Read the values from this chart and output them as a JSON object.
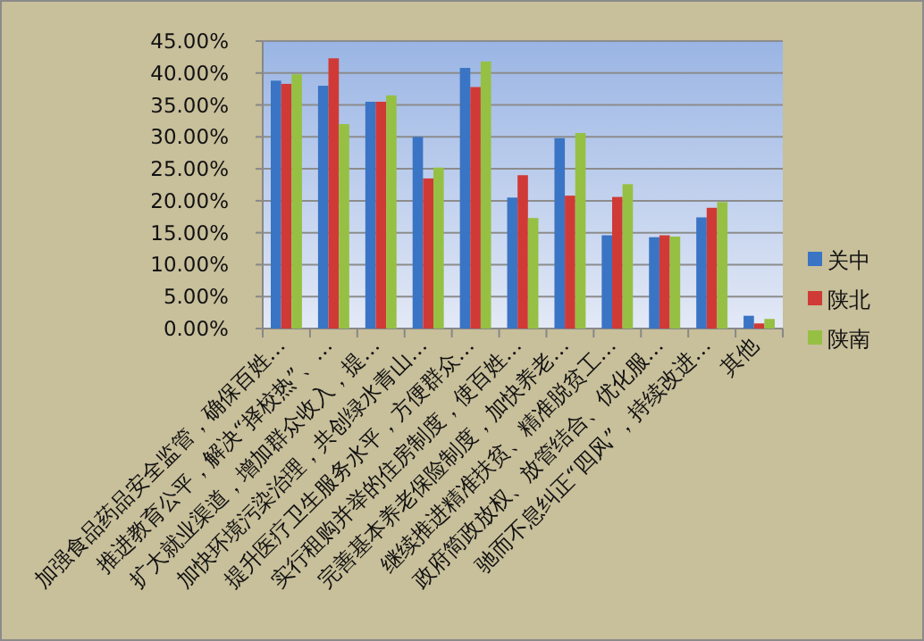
{
  "chart_data": {
    "type": "bar",
    "categories": [
      "加强食品药品安全监管，确保百姓…",
      "推进教育公平，解决“择校热”、…",
      "扩大就业渠道，增加群众收入，提…",
      "加快环境污染治理，共创绿水青山…",
      "提升医疗卫生服务水平，方便群众…",
      "实行租购并举的住房制度，使百姓…",
      "完善基本养老保险制度，加快养老…",
      "继续推进精准扶贫、精准脱贫工…",
      "政府简政放权、放管结合、优化服…",
      "驰而不息纠正“四风”，持续改进…",
      "其他"
    ],
    "series": [
      {
        "name": "关中",
        "color": "#3a74c4",
        "values": [
          38.8,
          38.0,
          35.5,
          30.0,
          40.8,
          20.5,
          29.8,
          14.6,
          14.3,
          17.4,
          2.0
        ]
      },
      {
        "name": "陕北",
        "color": "#d03a36",
        "values": [
          38.3,
          42.3,
          35.5,
          23.5,
          37.8,
          24.0,
          20.8,
          20.6,
          14.6,
          18.9,
          0.8
        ]
      },
      {
        "name": "陕南",
        "color": "#96c043",
        "values": [
          39.8,
          32.0,
          36.5,
          25.2,
          41.8,
          17.3,
          30.6,
          22.6,
          14.4,
          19.8,
          1.5
        ]
      }
    ],
    "ylim": [
      0,
      45
    ],
    "yticks": [
      {
        "value": 0,
        "label": "0.00%"
      },
      {
        "value": 5,
        "label": "5.00%"
      },
      {
        "value": 10,
        "label": "10.00%"
      },
      {
        "value": 15,
        "label": "15.00%"
      },
      {
        "value": 20,
        "label": "20.00%"
      },
      {
        "value": 25,
        "label": "25.00%"
      },
      {
        "value": 30,
        "label": "30.00%"
      },
      {
        "value": 35,
        "label": "35.00%"
      },
      {
        "value": 40,
        "label": "40.00%"
      },
      {
        "value": 45,
        "label": "45.00%"
      }
    ],
    "grid": "y",
    "legend": "right"
  }
}
